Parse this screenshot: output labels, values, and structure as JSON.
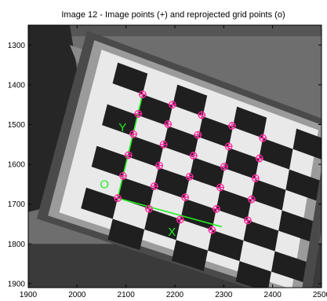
{
  "chart_data": {
    "type": "scatter",
    "title": "Image 12 - Image points (+) and reprojected grid points (o)",
    "xlabel": "",
    "ylabel": "",
    "xlim": [
      1900,
      2500
    ],
    "ylim": [
      1910,
      1250
    ],
    "y_axis_reversed": true,
    "x_ticks": [
      1900,
      2000,
      2100,
      2200,
      2300,
      2400,
      2500
    ],
    "x_tick_labels": [
      "1900",
      "2000",
      "2100",
      "2200",
      "2300",
      "2400",
      "2500"
    ],
    "y_ticks": [
      1300,
      1400,
      1500,
      1600,
      1700,
      1800,
      1900
    ],
    "y_tick_labels": [
      "1300",
      "1400",
      "1500",
      "1600",
      "1700",
      "1800",
      "1900"
    ],
    "grid": false,
    "background": "grayscale photograph of a hand-held checkerboard calibration target",
    "series": [
      {
        "marker": "+ and o",
        "color": "#ff2aa0",
        "points": [
          {
            "x": 2134,
            "y": 1424
          },
          {
            "x": 2195,
            "y": 1450
          },
          {
            "x": 2255,
            "y": 1476
          },
          {
            "x": 2317,
            "y": 1503
          },
          {
            "x": 2380,
            "y": 1534
          },
          {
            "x": 2125,
            "y": 1473
          },
          {
            "x": 2186,
            "y": 1499
          },
          {
            "x": 2247,
            "y": 1526
          },
          {
            "x": 2310,
            "y": 1555
          },
          {
            "x": 2373,
            "y": 1585
          },
          {
            "x": 2115,
            "y": 1524
          },
          {
            "x": 2177,
            "y": 1550
          },
          {
            "x": 2238,
            "y": 1578
          },
          {
            "x": 2301,
            "y": 1606
          },
          {
            "x": 2365,
            "y": 1635
          },
          {
            "x": 2105,
            "y": 1577
          },
          {
            "x": 2168,
            "y": 1603
          },
          {
            "x": 2230,
            "y": 1631
          },
          {
            "x": 2293,
            "y": 1658
          },
          {
            "x": 2357,
            "y": 1688
          },
          {
            "x": 2094,
            "y": 1629
          },
          {
            "x": 2158,
            "y": 1655
          },
          {
            "x": 2221,
            "y": 1683
          },
          {
            "x": 2285,
            "y": 1712
          },
          {
            "x": 2349,
            "y": 1741
          },
          {
            "x": 2083,
            "y": 1685
          },
          {
            "x": 2147,
            "y": 1712
          },
          {
            "x": 2211,
            "y": 1739
          },
          {
            "x": 2276,
            "y": 1765
          }
        ]
      }
    ],
    "annotations": [
      {
        "text": "X",
        "x": 2194,
        "y": 1772,
        "color": "#22ee22"
      },
      {
        "text": "Y",
        "x": 2093,
        "y": 1509,
        "color": "#22ee22"
      },
      {
        "text": "O",
        "x": 2056,
        "y": 1652,
        "color": "#22ee22"
      }
    ],
    "axes_lines": [
      {
        "name": "X",
        "from": {
          "x": 2083,
          "y": 1685
        },
        "to": {
          "x": 2296,
          "y": 1757
        }
      },
      {
        "name": "Y",
        "from": {
          "x": 2083,
          "y": 1685
        },
        "to": {
          "x": 2134,
          "y": 1424
        }
      }
    ]
  }
}
